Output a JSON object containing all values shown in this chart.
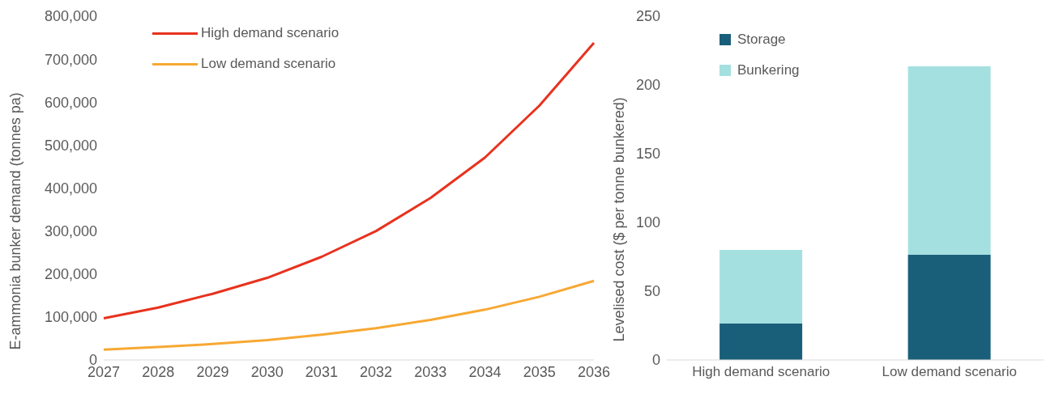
{
  "chart_data": [
    {
      "type": "line",
      "ylabel": "E-ammonia bunker demand (tonnes pa)",
      "categories": [
        "2027",
        "2028",
        "2029",
        "2030",
        "2031",
        "2032",
        "2033",
        "2034",
        "2035",
        "2036"
      ],
      "ylim": [
        0,
        800000
      ],
      "yticks": [
        0,
        {
          "value": 100000,
          "label": "100,000"
        },
        {
          "value": 200000,
          "label": "200,000"
        },
        {
          "value": 300000,
          "label": "300,000"
        },
        {
          "value": 400000,
          "label": "400,000"
        },
        {
          "value": 500000,
          "label": "500,000"
        },
        {
          "value": 600000,
          "label": "600,000"
        },
        {
          "value": 700000,
          "label": "700,000"
        },
        {
          "value": 800000,
          "label": "800,000"
        }
      ],
      "grid": false,
      "legend": "top left",
      "marker": "none",
      "line_style": "solid",
      "series": [
        {
          "name": "High demand scenario",
          "color": "#e8321e",
          "values": [
            97000,
            122000,
            154000,
            191000,
            240000,
            300000,
            377000,
            471000,
            592000,
            738000
          ]
        },
        {
          "name": "Low demand scenario",
          "color": "#f7a833",
          "values": [
            24000,
            30000,
            37000,
            46000,
            59000,
            74000,
            93000,
            117000,
            147000,
            184000
          ]
        }
      ]
    },
    {
      "type": "bar",
      "stacked": true,
      "ylabel": "Levelised cost ($ per tonne bunkered)",
      "categories": [
        "High demand scenario",
        "Low demand scenario"
      ],
      "ylim": [
        0,
        250
      ],
      "yticks": [
        0,
        50,
        100,
        150,
        200,
        250
      ],
      "grid": false,
      "legend": "top left",
      "series": [
        {
          "name": "Storage",
          "color": "#1a5f7a",
          "values": [
            26.5,
            76.5
          ]
        },
        {
          "name": "Bunkering",
          "color": "#a5e0e0",
          "values": [
            53.5,
            137
          ]
        }
      ]
    }
  ]
}
